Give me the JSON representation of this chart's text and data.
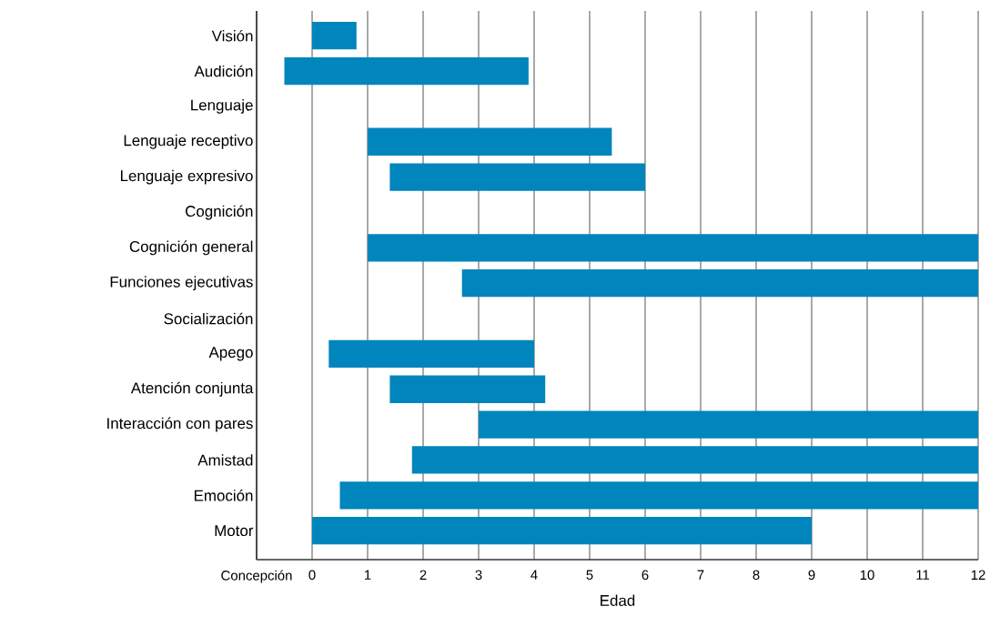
{
  "chart_data": {
    "type": "bar",
    "orientation": "horizontal",
    "xlabel": "Edad",
    "categories": [
      "Visión",
      "Audición",
      "Lenguaje",
      "Lenguaje receptivo",
      "Lenguaje expresivo",
      "Cognición",
      "Cognición general",
      "Funciones ejecutivas",
      "Socialización",
      "Apego",
      "Atención conjunta",
      "Interacción con pares",
      "Amistad",
      "Emoción",
      "Motor"
    ],
    "base": [
      0,
      -0.5,
      null,
      1,
      1.4,
      null,
      1,
      2.7,
      null,
      0.3,
      1.4,
      3,
      1.8,
      0.5,
      0
    ],
    "values": [
      0.8,
      4.4,
      null,
      4.4,
      4.6,
      null,
      11,
      9.3,
      null,
      3.7,
      2.8,
      9,
      10.2,
      11.5,
      9
    ],
    "color": "#0085bd",
    "xlim": [
      -1,
      12
    ],
    "xticks": [
      {
        "value": -1,
        "label": "Concepción"
      },
      0,
      1,
      2,
      3,
      4,
      5,
      6,
      7,
      8,
      9,
      10,
      11,
      12
    ],
    "grid": "x"
  }
}
